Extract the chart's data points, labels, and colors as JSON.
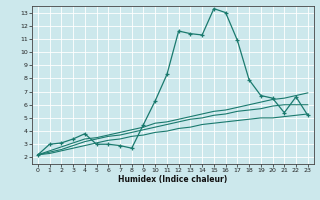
{
  "title": "",
  "xlabel": "Humidex (Indice chaleur)",
  "xlim": [
    -0.5,
    23.5
  ],
  "ylim": [
    1.5,
    13.5
  ],
  "xticks": [
    0,
    1,
    2,
    3,
    4,
    5,
    6,
    7,
    8,
    9,
    10,
    11,
    12,
    13,
    14,
    15,
    16,
    17,
    18,
    19,
    20,
    21,
    22,
    23
  ],
  "yticks": [
    2,
    3,
    4,
    5,
    6,
    7,
    8,
    9,
    10,
    11,
    12,
    13
  ],
  "bg_color": "#cce8ec",
  "line_color": "#1a7a6e",
  "grid_color": "#ffffff",
  "main_y": [
    2.2,
    3.0,
    3.1,
    3.4,
    3.8,
    3.0,
    3.0,
    2.9,
    2.7,
    4.5,
    6.3,
    8.3,
    11.6,
    11.4,
    11.3,
    13.3,
    13.0,
    10.9,
    7.9,
    6.7,
    6.5,
    5.4,
    6.6,
    5.2
  ],
  "trend1_y": [
    2.2,
    2.5,
    2.8,
    3.1,
    3.4,
    3.5,
    3.7,
    3.9,
    4.1,
    4.3,
    4.6,
    4.7,
    4.9,
    5.1,
    5.3,
    5.5,
    5.6,
    5.8,
    6.0,
    6.2,
    6.4,
    6.5,
    6.7,
    6.9
  ],
  "trend2_y": [
    2.2,
    2.4,
    2.6,
    2.9,
    3.2,
    3.4,
    3.6,
    3.7,
    3.9,
    4.1,
    4.3,
    4.5,
    4.7,
    4.9,
    5.0,
    5.2,
    5.3,
    5.5,
    5.6,
    5.7,
    5.9,
    6.0,
    6.0,
    6.0
  ],
  "trend3_y": [
    2.2,
    2.3,
    2.5,
    2.7,
    2.9,
    3.1,
    3.3,
    3.4,
    3.6,
    3.7,
    3.9,
    4.0,
    4.2,
    4.3,
    4.5,
    4.6,
    4.7,
    4.8,
    4.9,
    5.0,
    5.0,
    5.1,
    5.2,
    5.3
  ]
}
